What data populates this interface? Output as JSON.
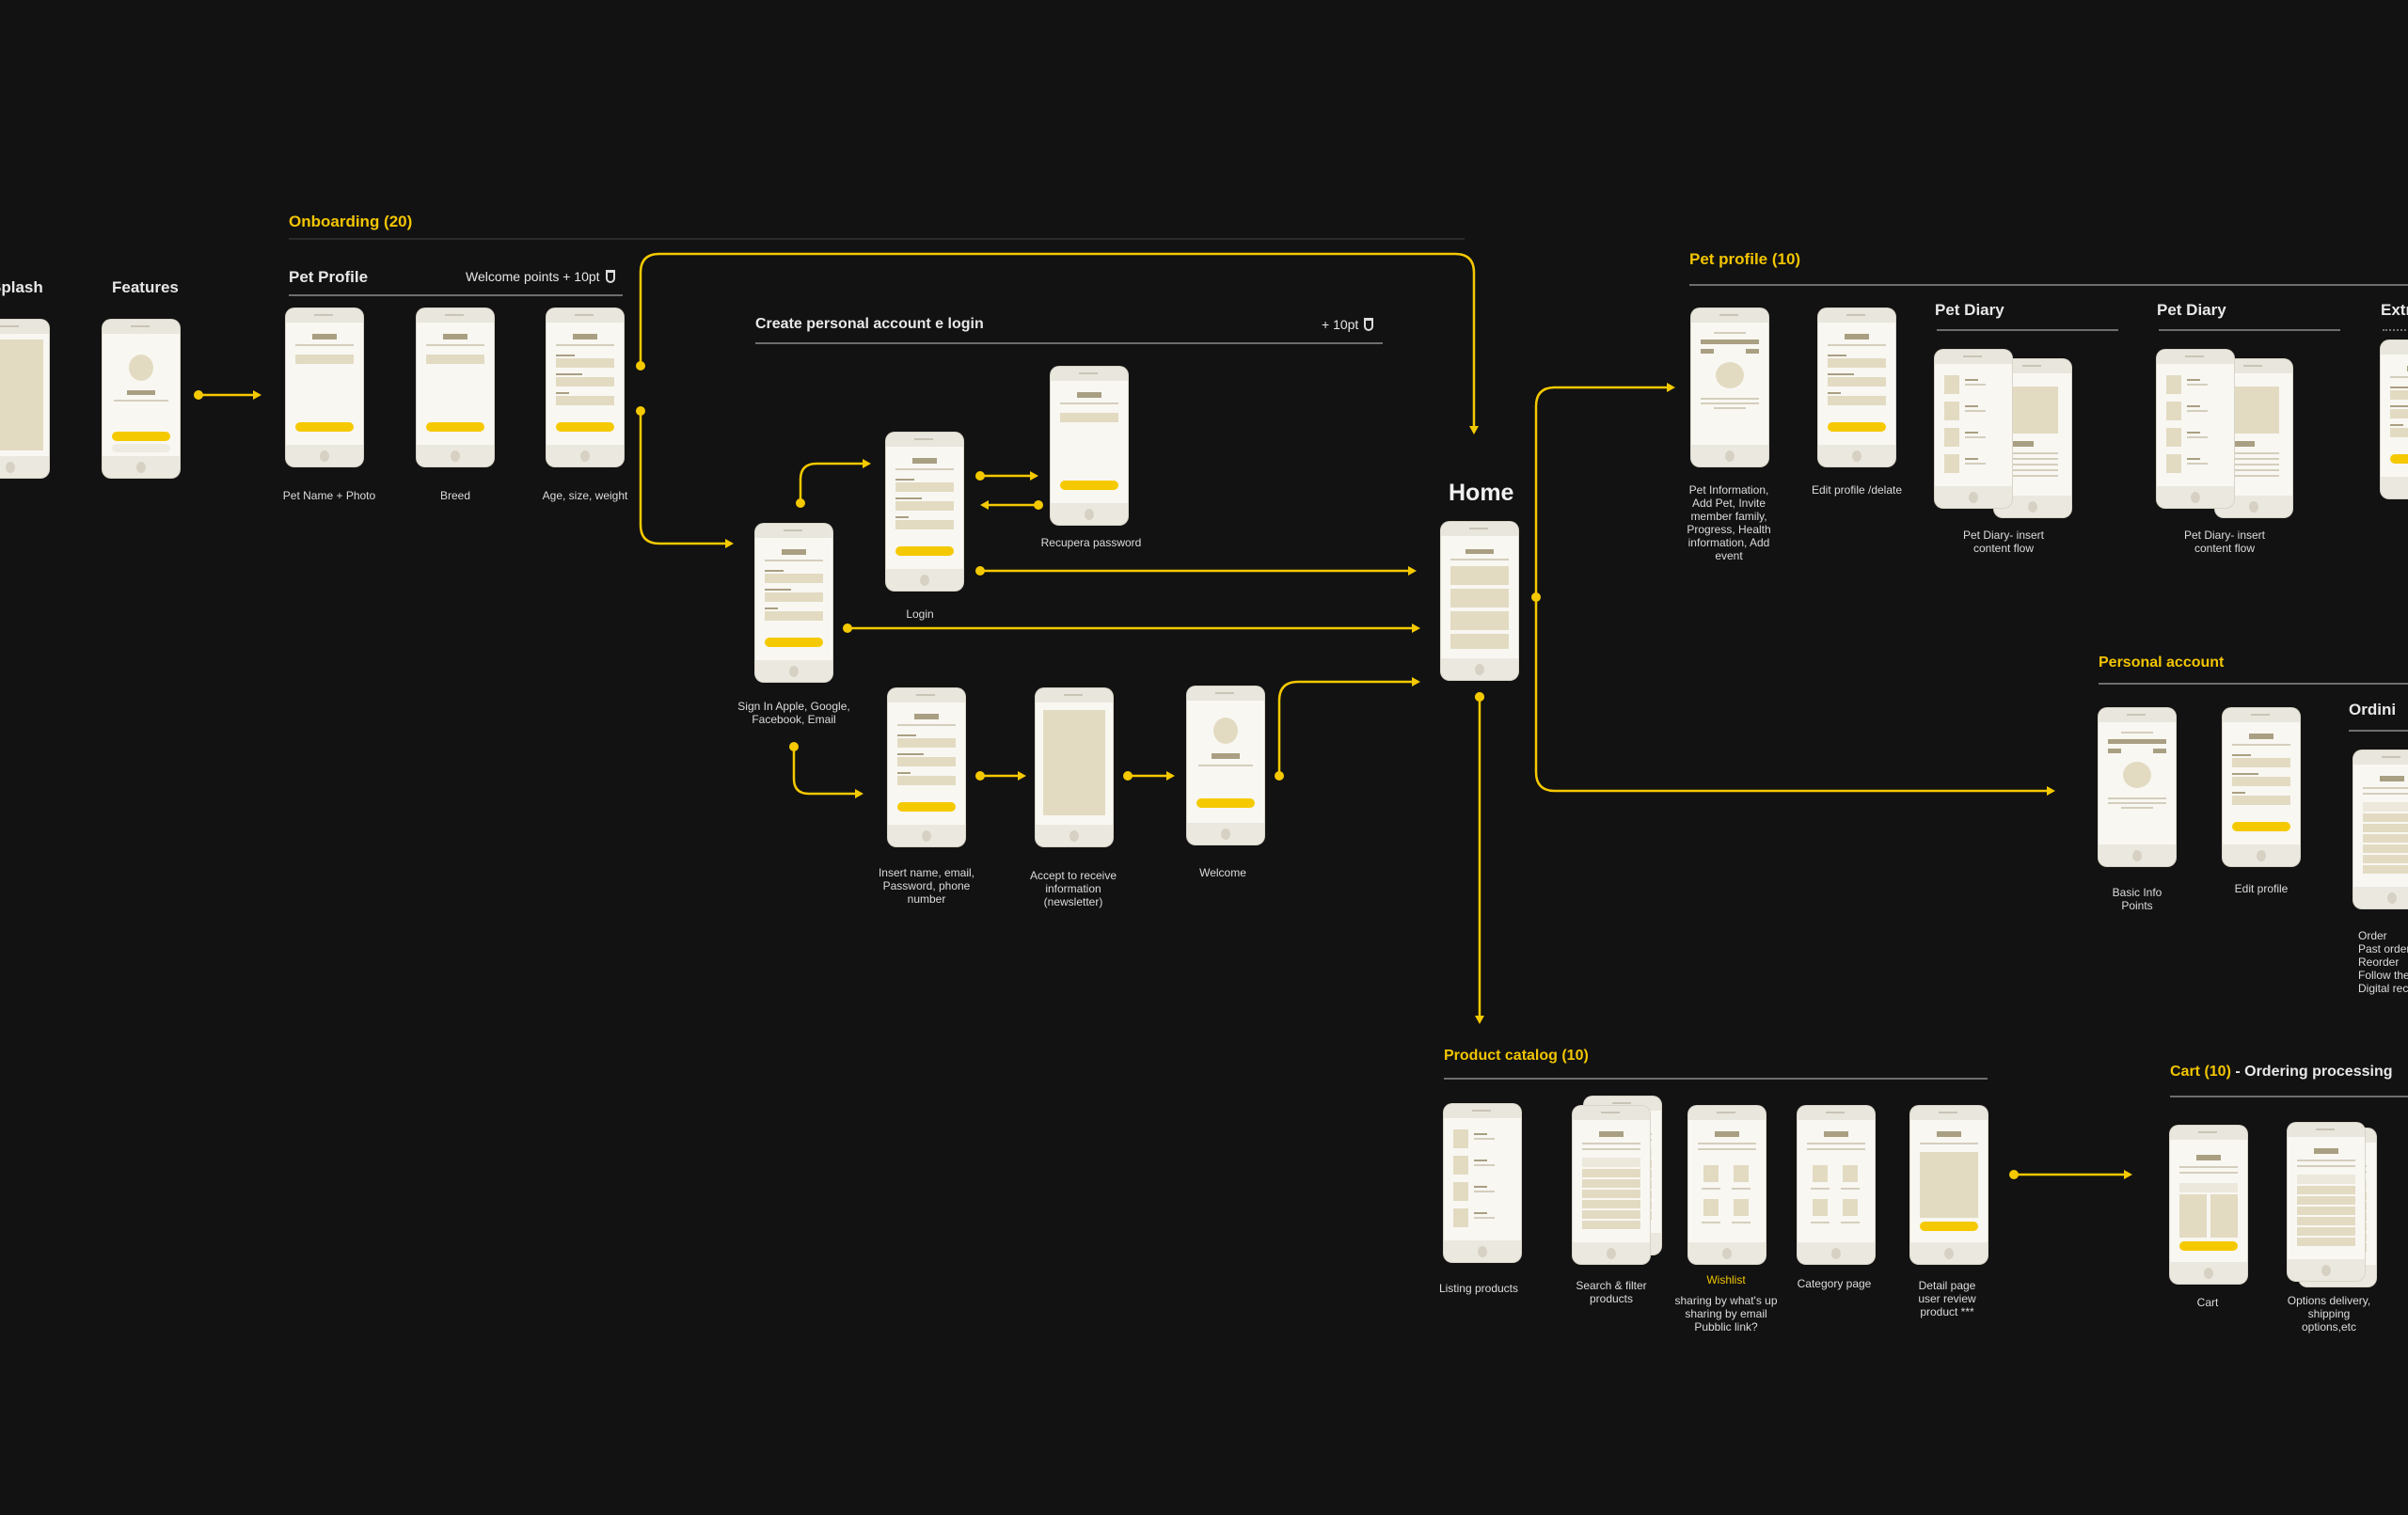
{
  "colors": {
    "background": "#121212",
    "accent": "#f5c900",
    "wireframe": "#f9f7f2",
    "placeholder": "#e2dbc2"
  },
  "onboarding": {
    "title": "Onboarding (20)",
    "splash_label": "Splash",
    "features_label": "Features",
    "pet_profile_label": "Pet Profile",
    "welcome_points": "Welcome points + 10pt",
    "captions": {
      "pet_name": "Pet Name + Photo",
      "breed": "Breed",
      "age": "Age, size, weight"
    }
  },
  "account": {
    "title": "Create personal account e login",
    "points": "+ 10pt",
    "captions": {
      "signin": "Sign In Apple, Google,\nFacebook, Email",
      "login": "Login",
      "recupera": "Recupera password",
      "insert": "Insert name, email,\nPassword, phone\nnumber",
      "accept": "Accept to receive\ninformation\n(newsletter)",
      "welcome": "Welcome"
    }
  },
  "home": {
    "title": "Home"
  },
  "pet_profile": {
    "title": "Pet profile (10)",
    "diary_label_1": "Pet Diary",
    "diary_label_2": "Pet Diary",
    "extra_label": "Extr",
    "captions": {
      "info": "Pet Information,\nAdd Pet, Invite\nmember family,\nProgress, Health\ninformation, Add\nevent",
      "edit": "Edit profile /delate",
      "diary1": "Pet Diary- insert\ncontent flow",
      "diary2": "Pet Diary- insert\ncontent flow"
    }
  },
  "personal_account": {
    "title": "Personal account",
    "ordini_label": "Ordini",
    "captions": {
      "basic": "Basic Info\nPoints",
      "edit": "Edit profile",
      "ordini": "Order\nPast order\nReorder\nFollow the\nDigital rec"
    }
  },
  "catalog": {
    "title": "Product catalog (10)",
    "captions": {
      "listing": "Listing products",
      "search": "Search & filter\nproducts",
      "wishlist_title": "Wishlist",
      "wishlist": "sharing by what's up\nsharing by email\nPubblic link?",
      "category": "Category page",
      "detail": "Detail page\nuser review\nproduct ***"
    }
  },
  "cart": {
    "title_accent": "Cart (10)",
    "title_rest": " - Ordering processing",
    "captions": {
      "cart": "Cart",
      "options": "Options delivery,\nshipping\noptions,etc"
    }
  }
}
